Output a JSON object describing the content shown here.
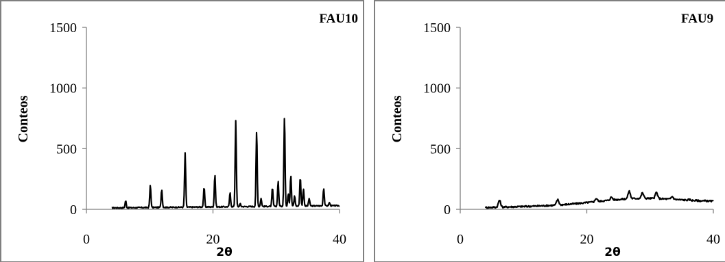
{
  "chart_data": [
    {
      "type": "line",
      "title": "FAU10",
      "xlabel": "2θ",
      "ylabel": "Conteos",
      "xlim": [
        0,
        40
      ],
      "ylim": [
        0,
        1500
      ],
      "xticks": [
        0,
        20,
        40
      ],
      "yticks": [
        0,
        500,
        1000,
        1500
      ],
      "grid": false,
      "series": [
        {
          "peaks": [
            [
              6.2,
              70
            ],
            [
              10.1,
              200
            ],
            [
              11.9,
              165
            ],
            [
              15.6,
              465
            ],
            [
              18.6,
              180
            ],
            [
              20.3,
              285
            ],
            [
              22.7,
              135
            ],
            [
              23.6,
              735
            ],
            [
              24.3,
              45
            ],
            [
              26.9,
              645
            ],
            [
              27.6,
              90
            ],
            [
              29.4,
              175
            ],
            [
              30.3,
              230
            ],
            [
              31.3,
              765
            ],
            [
              31.9,
              130
            ],
            [
              32.3,
              280
            ],
            [
              32.9,
              110
            ],
            [
              33.8,
              265
            ],
            [
              34.3,
              170
            ],
            [
              35.2,
              90
            ],
            [
              37.5,
              175
            ],
            [
              38.4,
              55
            ]
          ]
        }
      ]
    },
    {
      "type": "line",
      "title": "FAU9",
      "xlabel": "2θ",
      "ylabel": "Conteos",
      "xlim": [
        0,
        40
      ],
      "ylim": [
        0,
        1500
      ],
      "xticks": [
        0,
        20,
        40
      ],
      "yticks": [
        0,
        500,
        1000,
        1500
      ],
      "grid": false,
      "series": [
        {
          "peaks": [
            [
              6.2,
              75
            ],
            [
              15.4,
              80
            ],
            [
              21.5,
              90
            ],
            [
              23.9,
              100
            ],
            [
              26.7,
              150
            ],
            [
              28.8,
              135
            ],
            [
              31.0,
              140
            ],
            [
              33.5,
              105
            ],
            [
              36.2,
              80
            ]
          ]
        }
      ]
    }
  ]
}
